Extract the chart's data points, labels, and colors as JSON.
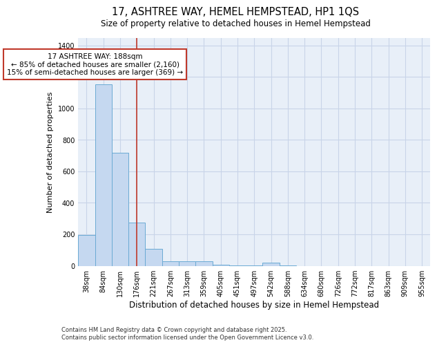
{
  "title": "17, ASHTREE WAY, HEMEL HEMPSTEAD, HP1 1QS",
  "subtitle": "Size of property relative to detached houses in Hemel Hempstead",
  "xlabel": "Distribution of detached houses by size in Hemel Hempstead",
  "ylabel": "Number of detached properties",
  "categories": [
    "38sqm",
    "84sqm",
    "130sqm",
    "176sqm",
    "221sqm",
    "267sqm",
    "313sqm",
    "359sqm",
    "405sqm",
    "451sqm",
    "497sqm",
    "542sqm",
    "588sqm",
    "634sqm",
    "680sqm",
    "726sqm",
    "772sqm",
    "817sqm",
    "863sqm",
    "909sqm",
    "955sqm"
  ],
  "values": [
    195,
    1155,
    720,
    275,
    107,
    30,
    28,
    28,
    5,
    3,
    3,
    18,
    3,
    0,
    0,
    0,
    0,
    0,
    0,
    0,
    0
  ],
  "bar_color": "#c5d8f0",
  "bar_edge_color": "#6aaad4",
  "bar_edge_width": 0.7,
  "vline_color": "#c0392b",
  "vline_x": 3.0,
  "annotation_title": "17 ASHTREE WAY: 188sqm",
  "annotation_line1": "← 85% of detached houses are smaller (2,160)",
  "annotation_line2": "15% of semi-detached houses are larger (369) →",
  "annotation_box_color": "#c0392b",
  "annotation_bg": "#ffffff",
  "ylim": [
    0,
    1450
  ],
  "yticks": [
    0,
    200,
    400,
    600,
    800,
    1000,
    1200,
    1400
  ],
  "bg_color": "#e8eff8",
  "grid_color": "#c8d4e8",
  "footer_line1": "Contains HM Land Registry data © Crown copyright and database right 2025.",
  "footer_line2": "Contains public sector information licensed under the Open Government Licence v3.0.",
  "title_fontsize": 10.5,
  "subtitle_fontsize": 8.5,
  "xlabel_fontsize": 8.5,
  "ylabel_fontsize": 8.0,
  "tick_fontsize": 7.0,
  "annotation_fontsize": 7.5,
  "footer_fontsize": 6.0
}
